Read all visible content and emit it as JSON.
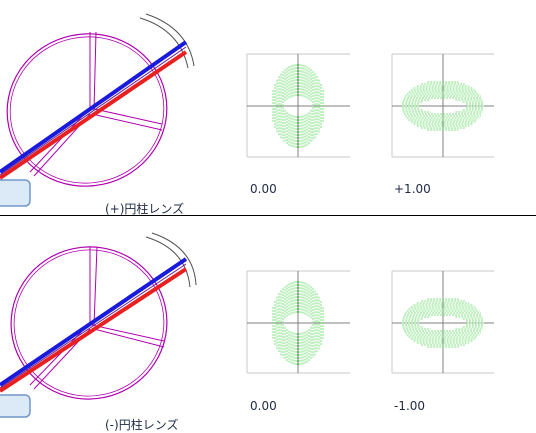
{
  "panels": [
    {
      "caption": "(+)円柱レンズ",
      "values": [
        "0.00",
        "+1.00"
      ]
    },
    {
      "caption": "(-)円柱レンズ",
      "values": [
        "0.00",
        "-1.00"
      ]
    }
  ],
  "colors": {
    "lens_ring": "#b000b0",
    "ray_red": "#e82020",
    "ray_blue": "#1a1adc",
    "spot": "#7fe07f",
    "axis": "#808080",
    "frame": "#c8c8c8",
    "outline": "#505050",
    "bluebox": "#8fb8e0"
  }
}
